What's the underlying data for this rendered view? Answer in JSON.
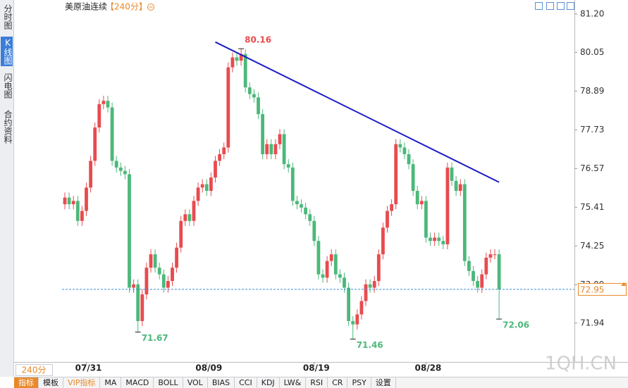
{
  "header": {
    "symbol": "美原油连续",
    "period": "【240分】"
  },
  "sidebar_tabs": [
    "分时图",
    "K线图",
    "闪电图",
    "合约资料"
  ],
  "period_button": "240分",
  "indicator_tabs": [
    "指标",
    "模板",
    "VIP指标",
    "MA",
    "MACD",
    "BOLL",
    "VOL",
    "BIAS",
    "CCI",
    "KDJ",
    "LW&",
    "RSI",
    "CR",
    "PSY",
    "设置"
  ],
  "watermark": "1QH.CN",
  "chart_data": {
    "type": "candlestick",
    "up_color": "#e84b4f",
    "down_color": "#4cb87a",
    "ylim": [
      70.86,
      81.45
    ],
    "yticks": [
      {
        "value": 81.2,
        "label": "81.20"
      },
      80.05,
      78.89,
      77.73,
      76.57,
      75.41,
      74.25,
      73.09,
      71.94
    ],
    "categories": [
      null,
      null,
      null,
      null,
      null,
      "07/31",
      null,
      null,
      null,
      null,
      null,
      null,
      null,
      null,
      null,
      null,
      null,
      null,
      null,
      null,
      null,
      null,
      null,
      null,
      null,
      null,
      null,
      null,
      null,
      null,
      null,
      null,
      null,
      "08/09",
      null,
      null,
      null,
      null,
      null,
      null,
      null,
      null,
      null,
      null,
      null,
      null,
      null,
      null,
      null,
      null,
      null,
      null,
      null,
      null,
      null,
      null,
      null,
      null,
      "08/19",
      null,
      null,
      null,
      null,
      null,
      null,
      null,
      null,
      null,
      null,
      null,
      null,
      null,
      null,
      null,
      null,
      null,
      null,
      null,
      null,
      null,
      null,
      null,
      null,
      null,
      "08/28",
      null,
      null,
      null,
      null,
      null,
      null,
      null,
      null,
      null,
      null,
      null,
      null,
      null,
      null,
      null,
      null,
      null
    ],
    "open": [
      75.5,
      75.7,
      75.5,
      75.6,
      75.0,
      75.3,
      76.0,
      76.8,
      77.8,
      78.5,
      78.6,
      78.4,
      76.8,
      76.6,
      76.5,
      76.4,
      73.0,
      73.1,
      72.0,
      72.8,
      73.6,
      74.0,
      73.6,
      73.4,
      73.0,
      73.2,
      73.6,
      74.2,
      75.0,
      75.2,
      75.0,
      75.6,
      76.0,
      76.1,
      75.9,
      76.3,
      76.8,
      77.0,
      77.2,
      79.6,
      79.9,
      79.8,
      80.0,
      79.0,
      78.8,
      78.7,
      78.2,
      77.0,
      77.3,
      77.0,
      77.3,
      77.6,
      76.7,
      76.6,
      75.6,
      75.5,
      75.4,
      75.2,
      75.0,
      74.4,
      73.4,
      73.3,
      73.8,
      74.0,
      73.4,
      73.3,
      73.0,
      72.0,
      71.9,
      72.2,
      72.6,
      73.1,
      73.0,
      73.2,
      74.0,
      74.8,
      75.3,
      75.5,
      77.3,
      77.2,
      77.0,
      76.7,
      75.9,
      75.5,
      75.6,
      74.5,
      74.4,
      74.5,
      74.4,
      74.3,
      76.6,
      76.2,
      75.9,
      76.1,
      73.8,
      73.5,
      73.2,
      73.0,
      73.4,
      73.9,
      74.0,
      74.0
    ],
    "high": [
      75.85,
      75.85,
      75.75,
      75.75,
      75.45,
      76.15,
      76.95,
      77.95,
      78.65,
      78.75,
      78.75,
      78.55,
      76.95,
      76.75,
      76.65,
      76.55,
      73.25,
      73.25,
      72.95,
      73.75,
      74.15,
      74.15,
      73.75,
      73.55,
      73.35,
      73.75,
      74.35,
      75.15,
      75.35,
      75.35,
      75.75,
      76.15,
      76.25,
      76.25,
      76.45,
      76.95,
      77.15,
      77.35,
      79.75,
      80.05,
      80.05,
      80.16,
      80.15,
      79.15,
      78.95,
      78.85,
      78.35,
      77.45,
      77.45,
      77.45,
      77.75,
      77.75,
      76.85,
      76.75,
      75.75,
      75.65,
      75.55,
      75.35,
      75.15,
      74.55,
      73.55,
      73.95,
      74.15,
      74.15,
      73.55,
      73.45,
      73.15,
      72.15,
      72.35,
      72.75,
      73.25,
      73.25,
      73.35,
      74.15,
      74.95,
      75.45,
      75.65,
      77.45,
      77.45,
      77.35,
      77.15,
      76.85,
      76.05,
      75.75,
      75.75,
      74.65,
      74.65,
      74.65,
      74.55,
      76.75,
      76.75,
      76.35,
      76.25,
      76.25,
      73.95,
      73.65,
      73.35,
      73.55,
      74.05,
      74.15,
      74.15,
      74.15
    ],
    "low": [
      75.35,
      75.35,
      75.35,
      74.85,
      74.85,
      75.15,
      75.85,
      76.65,
      77.65,
      78.35,
      78.25,
      76.65,
      76.45,
      76.35,
      76.25,
      72.85,
      72.85,
      71.67,
      71.85,
      72.65,
      73.45,
      73.45,
      73.25,
      72.85,
      72.85,
      73.05,
      73.45,
      74.05,
      74.85,
      74.85,
      74.85,
      75.45,
      75.85,
      75.75,
      75.75,
      76.15,
      76.65,
      76.85,
      77.05,
      79.45,
      79.65,
      79.65,
      78.85,
      78.65,
      78.55,
      78.05,
      76.85,
      76.85,
      76.85,
      76.85,
      77.15,
      76.55,
      76.45,
      75.45,
      75.35,
      75.25,
      75.05,
      74.85,
      74.25,
      73.25,
      73.15,
      73.15,
      73.65,
      73.25,
      73.15,
      72.85,
      71.85,
      71.46,
      71.75,
      72.05,
      72.45,
      72.85,
      72.85,
      73.05,
      73.85,
      74.65,
      75.15,
      75.35,
      77.05,
      76.85,
      76.55,
      75.75,
      75.35,
      75.35,
      74.35,
      74.25,
      74.25,
      74.25,
      74.15,
      74.15,
      76.05,
      75.75,
      75.75,
      73.65,
      73.35,
      73.05,
      72.85,
      72.85,
      73.25,
      73.75,
      73.85,
      72.06
    ],
    "close": [
      75.7,
      75.5,
      75.6,
      75.0,
      75.3,
      76.0,
      76.8,
      77.8,
      78.5,
      78.6,
      78.4,
      76.8,
      76.6,
      76.5,
      76.4,
      73.0,
      73.1,
      72.0,
      72.8,
      73.6,
      74.0,
      73.6,
      73.4,
      73.0,
      73.2,
      73.6,
      74.2,
      75.0,
      75.2,
      75.0,
      75.6,
      76.0,
      76.1,
      75.9,
      76.3,
      76.8,
      77.0,
      77.2,
      79.6,
      79.9,
      79.8,
      80.0,
      79.0,
      78.8,
      78.7,
      78.2,
      77.0,
      77.3,
      77.0,
      77.3,
      77.6,
      76.7,
      76.6,
      75.6,
      75.5,
      75.4,
      75.2,
      75.0,
      74.4,
      73.4,
      73.3,
      73.8,
      74.0,
      73.4,
      73.3,
      73.0,
      72.0,
      71.9,
      72.2,
      72.6,
      73.1,
      73.0,
      73.2,
      74.0,
      74.8,
      75.3,
      75.5,
      77.3,
      77.2,
      77.0,
      76.7,
      75.9,
      75.5,
      75.6,
      74.5,
      74.4,
      74.5,
      74.4,
      74.3,
      76.6,
      76.2,
      75.9,
      76.1,
      73.8,
      73.5,
      73.2,
      73.0,
      73.4,
      73.9,
      74.0,
      74.0,
      72.95
    ],
    "annotations": [
      {
        "index": 41,
        "value": 80.16
      },
      {
        "index": 17,
        "value": 71.67
      },
      {
        "index": 67,
        "value": 71.46
      },
      {
        "index": 101,
        "value": 72.06
      }
    ],
    "last_price": 72.95,
    "last_price_color": "#e8892a",
    "price_line_color": "#3b8fd6",
    "trendline": {
      "from": {
        "index": 35,
        "value": 80.36
      },
      "to": {
        "index": 101,
        "value": 76.16
      },
      "color": "#1c1cc8"
    }
  }
}
